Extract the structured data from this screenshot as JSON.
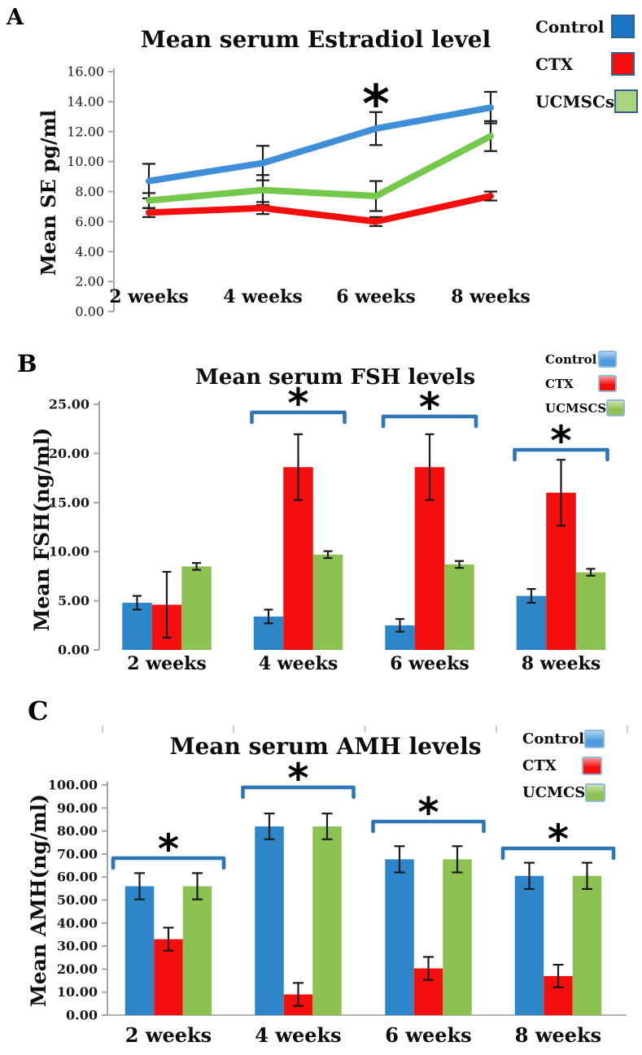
{
  "figure": {
    "panels": [
      {
        "letter": "A",
        "title": "Mean serum Estradiol level",
        "y_axis_label": "Mean SE pg/ml",
        "legend": [
          {
            "label": "Control",
            "color": "#1B74C4"
          },
          {
            "label": "CTX",
            "color": "#F40E0E"
          },
          {
            "label": "UCMSCs",
            "color": "#A9D57F"
          }
        ]
      },
      {
        "letter": "B",
        "title": "Mean serum FSH  levels",
        "y_axis_label": "Mean FSH(ng/ml)",
        "legend": [
          {
            "label": "Control",
            "color": "#4D9BDE"
          },
          {
            "label": "CTX",
            "color": "#F40E0E"
          },
          {
            "label": "UCMSCS",
            "color": "#8DC152"
          }
        ]
      },
      {
        "letter": "C",
        "title": "Mean serum AMH levels",
        "y_axis_label": "Mean AMH(ng/ml)",
        "legend": [
          {
            "label": "Control",
            "color": "#4D9BDE"
          },
          {
            "label": "CTX",
            "color": "#F40E0E"
          },
          {
            "label": "UCMCS",
            "color": "#8DC152"
          }
        ]
      }
    ]
  },
  "chart_data": [
    {
      "type": "line",
      "title": "Mean serum Estradiol level",
      "xlabel": "",
      "ylabel": "Mean SE pg/ml",
      "categories": [
        "2 weeks",
        "4 weeks",
        "6 weeks",
        "8 weeks"
      ],
      "ylim": [
        0,
        16
      ],
      "ytick_step": 2,
      "grid": false,
      "legend_position": "right-top",
      "series": [
        {
          "name": "Control",
          "color": "#3E8FD8",
          "values": [
            8.7,
            9.9,
            12.2,
            13.6
          ],
          "errors": [
            1.15,
            1.15,
            1.1,
            1.05
          ]
        },
        {
          "name": "CTX",
          "color": "#F40E0E",
          "values": [
            6.6,
            6.9,
            6.0,
            7.7
          ],
          "errors": [
            0.3,
            0.4,
            0.3,
            0.3
          ]
        },
        {
          "name": "UCMSCs",
          "color": "#74C94C",
          "values": [
            7.4,
            8.1,
            7.7,
            11.7
          ],
          "errors": [
            0.5,
            1.0,
            1.0,
            1.0
          ]
        }
      ],
      "significance_markers": [
        {
          "category_index": 2,
          "marker": "*",
          "near_series": "Control"
        }
      ]
    },
    {
      "type": "bar",
      "title": "Mean serum FSH  levels",
      "xlabel": "",
      "ylabel": "Mean FSH(ng/ml)",
      "categories": [
        "2 weeks",
        "4 weeks",
        "6 weeks",
        "8 weeks"
      ],
      "ylim": [
        0,
        25
      ],
      "ytick_step": 5,
      "grid": false,
      "legend_position": "right-top",
      "series": [
        {
          "name": "Control",
          "color": "#2E86C9",
          "values": [
            4.8,
            3.4,
            2.5,
            5.5
          ],
          "errors": [
            0.7,
            0.7,
            0.65,
            0.7
          ]
        },
        {
          "name": "CTX",
          "color": "#F40E0E",
          "values": [
            4.6,
            18.6,
            18.6,
            16.0
          ],
          "errors": [
            3.35,
            3.35,
            3.35,
            3.35
          ]
        },
        {
          "name": "UCMSCS",
          "color": "#8DC152",
          "values": [
            8.5,
            9.7,
            8.7,
            7.9
          ],
          "errors": [
            0.35,
            0.35,
            0.35,
            0.35
          ]
        }
      ],
      "significance_brackets": [
        {
          "category_index": 1,
          "marker": "*"
        },
        {
          "category_index": 2,
          "marker": "*"
        },
        {
          "category_index": 3,
          "marker": "*"
        }
      ]
    },
    {
      "type": "bar",
      "title": "Mean serum AMH levels",
      "xlabel": "",
      "ylabel": "Mean AMH(ng/ml)",
      "categories": [
        "2 weeks",
        "4 weeks",
        "6 weeks",
        "8 weeks"
      ],
      "ylim": [
        0,
        100
      ],
      "ytick_step": 10,
      "grid": false,
      "legend_position": "right-top",
      "series": [
        {
          "name": "Control",
          "color": "#2E86C9",
          "values": [
            56,
            82,
            67.7,
            60.5
          ],
          "errors": [
            5.7,
            5.6,
            5.7,
            5.7
          ]
        },
        {
          "name": "CTX",
          "color": "#F40E0E",
          "values": [
            33,
            9,
            20.3,
            17
          ],
          "errors": [
            5,
            5,
            5,
            4.9
          ]
        },
        {
          "name": "UCMCS",
          "color": "#8DC152",
          "values": [
            56,
            82,
            67.7,
            60.5
          ],
          "errors": [
            5.7,
            5.6,
            5.7,
            5.7
          ]
        }
      ],
      "significance_brackets": [
        {
          "category_index": 0,
          "marker": "*"
        },
        {
          "category_index": 1,
          "marker": "*"
        },
        {
          "category_index": 2,
          "marker": "*"
        },
        {
          "category_index": 3,
          "marker": "*"
        }
      ]
    }
  ]
}
